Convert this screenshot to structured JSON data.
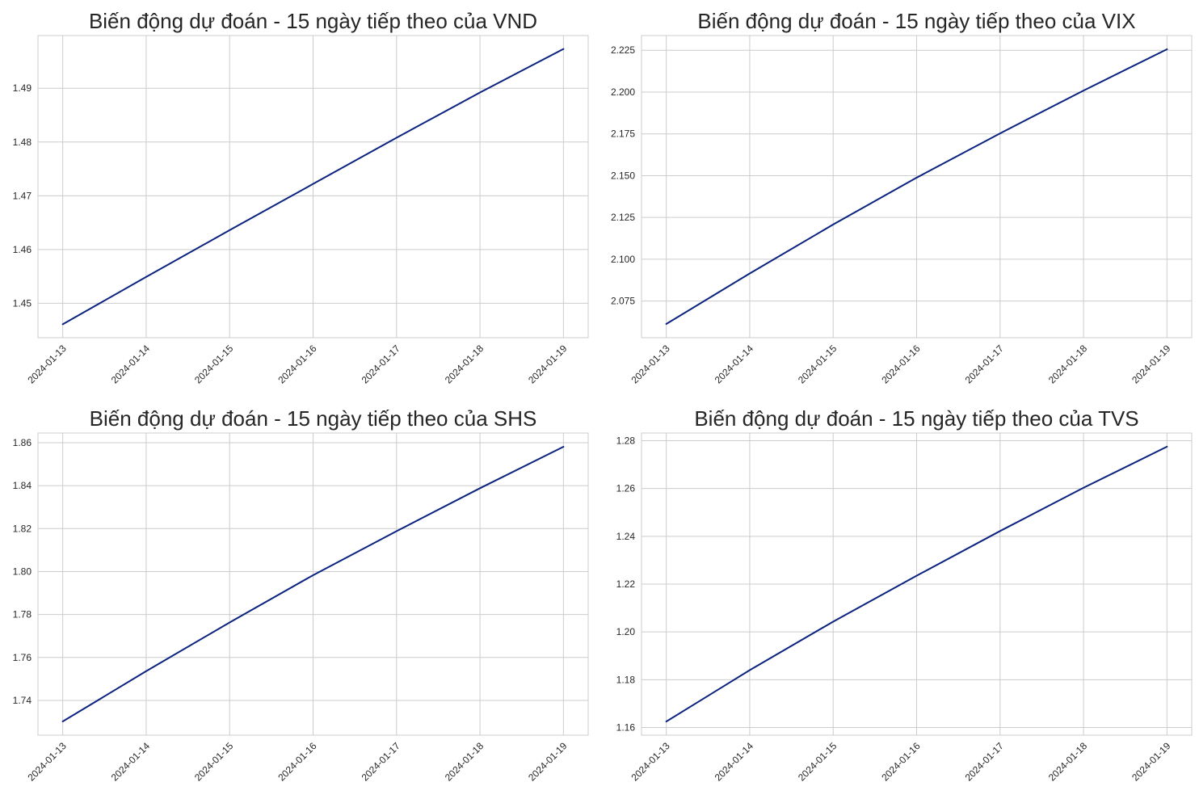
{
  "chart_data": [
    {
      "type": "line",
      "title": "Biến động dự đoán - 15 ngày tiếp theo của VND",
      "xlabel": "",
      "ylabel": "",
      "x": [
        "2024-01-13",
        "2024-01-14",
        "2024-01-15",
        "2024-01-16",
        "2024-01-17",
        "2024-01-18",
        "2024-01-19"
      ],
      "x_ticks": [
        "2024-01-13",
        "2024-01-14",
        "2024-01-15",
        "2024-01-16",
        "2024-01-17",
        "2024-01-18",
        "2024-01-19"
      ],
      "series": [
        {
          "values": [
            1.4461,
            1.4549,
            1.4636,
            1.4722,
            1.4808,
            1.4892,
            1.4973
          ],
          "color": "#0b2380"
        }
      ],
      "ylim": [
        1.4436,
        1.4998
      ],
      "y_ticks": [
        "1.45",
        "1.46",
        "1.47",
        "1.48",
        "1.49"
      ],
      "grid": true,
      "legend": "none"
    },
    {
      "type": "line",
      "title": "Biến động dự đoán - 15 ngày tiếp theo của VIX",
      "xlabel": "",
      "ylabel": "",
      "x": [
        "2024-01-13",
        "2024-01-14",
        "2024-01-15",
        "2024-01-16",
        "2024-01-17",
        "2024-01-18",
        "2024-01-19"
      ],
      "x_ticks": [
        "2024-01-13",
        "2024-01-14",
        "2024-01-15",
        "2024-01-16",
        "2024-01-17",
        "2024-01-18",
        "2024-01-19"
      ],
      "series": [
        {
          "values": [
            2.0613,
            2.0915,
            2.1208,
            2.1488,
            2.1753,
            2.2009,
            2.2256
          ],
          "color": "#0b2380"
        }
      ],
      "ylim": [
        2.0531,
        2.2338
      ],
      "y_ticks": [
        "2.075",
        "2.100",
        "2.125",
        "2.150",
        "2.175",
        "2.200",
        "2.225"
      ],
      "grid": true,
      "legend": "none"
    },
    {
      "type": "line",
      "title": "Biến động dự đoán - 15 ngày tiếp theo của SHS",
      "xlabel": "",
      "ylabel": "",
      "x": [
        "2024-01-13",
        "2024-01-14",
        "2024-01-15",
        "2024-01-16",
        "2024-01-17",
        "2024-01-18",
        "2024-01-19"
      ],
      "x_ticks": [
        "2024-01-13",
        "2024-01-14",
        "2024-01-15",
        "2024-01-16",
        "2024-01-17",
        "2024-01-18",
        "2024-01-19"
      ],
      "series": [
        {
          "values": [
            1.7302,
            1.7536,
            1.7763,
            1.7983,
            1.8188,
            1.8388,
            1.8581
          ],
          "color": "#0b2380"
        }
      ],
      "ylim": [
        1.7238,
        1.8645
      ],
      "y_ticks": [
        "1.74",
        "1.76",
        "1.78",
        "1.80",
        "1.82",
        "1.84",
        "1.86"
      ],
      "grid": true,
      "legend": "none"
    },
    {
      "type": "line",
      "title": "Biến động dự đoán - 15 ngày tiếp theo của TVS",
      "xlabel": "",
      "ylabel": "",
      "x": [
        "2024-01-13",
        "2024-01-14",
        "2024-01-15",
        "2024-01-16",
        "2024-01-17",
        "2024-01-18",
        "2024-01-19"
      ],
      "x_ticks": [
        "2024-01-13",
        "2024-01-14",
        "2024-01-15",
        "2024-01-16",
        "2024-01-17",
        "2024-01-18",
        "2024-01-19"
      ],
      "series": [
        {
          "values": [
            1.1625,
            1.184,
            1.2043,
            1.2235,
            1.2422,
            1.2603,
            1.2775
          ],
          "color": "#0b2380"
        }
      ],
      "ylim": [
        1.1568,
        1.2832
      ],
      "y_ticks": [
        "1.16",
        "1.18",
        "1.20",
        "1.22",
        "1.24",
        "1.26",
        "1.28"
      ],
      "grid": true,
      "legend": "none"
    }
  ]
}
